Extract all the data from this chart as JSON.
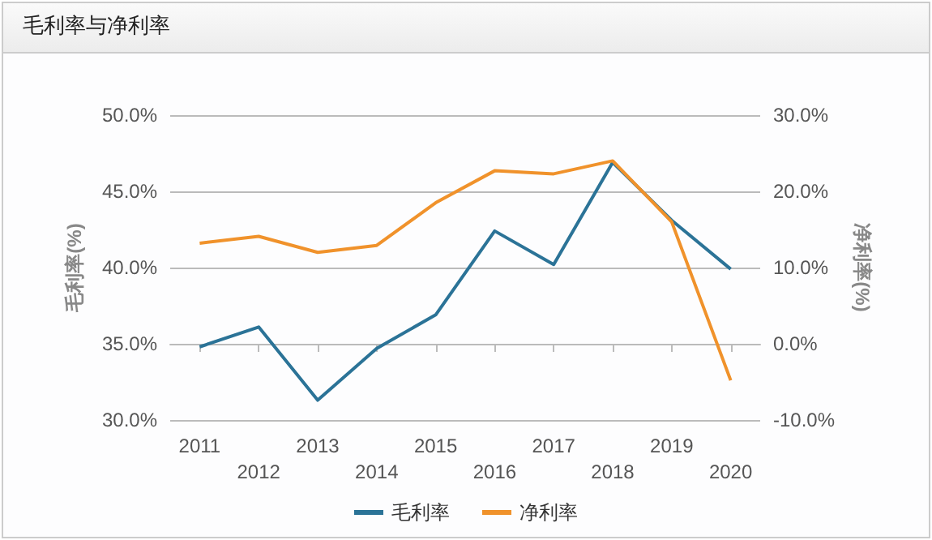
{
  "chart_data": {
    "type": "line",
    "title": "毛利率与净利率",
    "ylabel": "毛利率(%)",
    "y2label": "净利率(%)",
    "categories": [
      "2011",
      "2012",
      "2013",
      "2014",
      "2015",
      "2016",
      "2017",
      "2018",
      "2019",
      "2020"
    ],
    "series": [
      {
        "name": "毛利率",
        "color": "#2b7397",
        "values": [
          34.8,
          36.1,
          31.3,
          34.7,
          36.9,
          42.4,
          40.2,
          46.9,
          43.1,
          39.9
        ]
      },
      {
        "name": "净利率",
        "color": "#f0922b",
        "axis": "y2",
        "values": [
          13.2,
          14.1,
          12.0,
          12.9,
          18.5,
          22.7,
          22.3,
          24.0,
          16.0,
          -4.8
        ]
      }
    ],
    "ylim": [
      30,
      50
    ],
    "yticks": [
      {
        "value": 30,
        "label": "30.0%"
      },
      {
        "value": 35,
        "label": "35.0%"
      },
      {
        "value": 40,
        "label": "40.0%"
      },
      {
        "value": 45,
        "label": "45.0%"
      },
      {
        "value": 50,
        "label": "50.0%"
      }
    ],
    "y2lim": [
      -10,
      30
    ],
    "y2ticks": [
      {
        "value": -10,
        "label": "-10.0%"
      },
      {
        "value": 0,
        "label": "0.0%"
      },
      {
        "value": 10,
        "label": "10.0%"
      },
      {
        "value": 20,
        "label": "20.0%"
      },
      {
        "value": 30,
        "label": "30.0%"
      }
    ],
    "grid": "y",
    "legend": "bottom",
    "marker": "none",
    "line_style": "solid"
  }
}
